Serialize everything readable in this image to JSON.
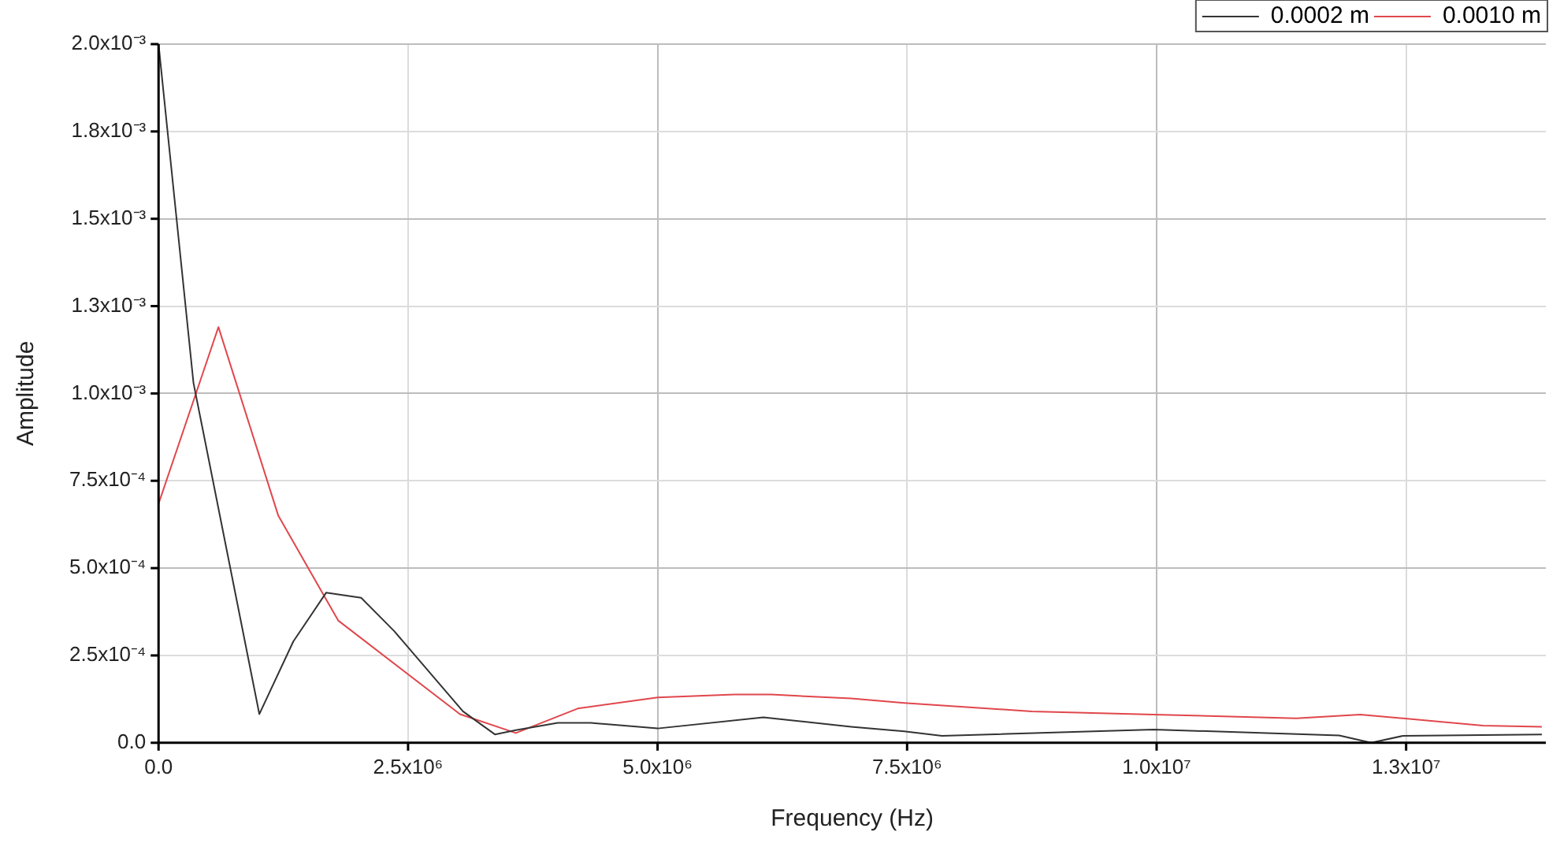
{
  "chart_data": {
    "type": "line",
    "xlabel": "Frequency (Hz)",
    "ylabel": "Amplitude",
    "xlim": [
      0,
      13900000
    ],
    "ylim": [
      0,
      0.002
    ],
    "xticks": [
      {
        "value": 0,
        "label": "0.0"
      },
      {
        "value": 2500000,
        "label": "2.5x10⁶"
      },
      {
        "value": 5000000,
        "label": "5.0x10⁶"
      },
      {
        "value": 7500000,
        "label": "7.5x10⁶"
      },
      {
        "value": 10000000,
        "label": "1.0x10⁷"
      },
      {
        "value": 12500000,
        "label": "1.3x10⁷"
      }
    ],
    "yticks": [
      {
        "value": 0,
        "label": "0.0"
      },
      {
        "value": 0.00025,
        "label": "2.5x10⁻⁴"
      },
      {
        "value": 0.0005,
        "label": "5.0x10⁻⁴"
      },
      {
        "value": 0.00075,
        "label": "7.5x10⁻⁴"
      },
      {
        "value": 0.001,
        "label": "1.0x10⁻³"
      },
      {
        "value": 0.00125,
        "label": "1.3x10⁻³"
      },
      {
        "value": 0.0015,
        "label": "1.5x10⁻³"
      },
      {
        "value": 0.00175,
        "label": "1.8x10⁻³"
      },
      {
        "value": 0.002,
        "label": "2.0x10⁻³"
      }
    ],
    "grid": true,
    "legend": "top right",
    "marker": "none",
    "line_style": "solid",
    "series": [
      {
        "name": "0.0002 m",
        "color": "#333333",
        "x": [
          0,
          350000,
          1010000,
          1350000,
          1680000,
          2030000,
          2360000,
          3050000,
          3370000,
          3580000,
          4000000,
          4330000,
          5000000,
          6060000,
          6940000,
          7470000,
          7850000,
          9970000,
          11830000,
          12150000,
          12470000,
          13860000
        ],
        "values": [
          0.002,
          0.00103,
          8.2e-05,
          0.00029,
          0.00043,
          0.000415,
          0.00032,
          9e-05,
          2.4e-05,
          3.6e-05,
          5.7e-05,
          5.7e-05,
          4.1e-05,
          7.3e-05,
          4.6e-05,
          3.3e-05,
          2e-05,
          3.8e-05,
          2.1e-05,
          0.0,
          2e-05,
          2.4e-05
        ]
      },
      {
        "name": "0.0010 m",
        "color": "#e0474c",
        "x": [
          0,
          600000,
          1200000,
          1800000,
          3020000,
          3580000,
          4200000,
          5000000,
          5770000,
          6140000,
          6940000,
          7470000,
          8750000,
          9970000,
          11400000,
          12040000,
          13270000,
          13860000
        ],
        "values": [
          0.000684,
          0.00119,
          0.00065,
          0.00035,
          8.2e-05,
          2.8e-05,
          9.8e-05,
          0.00013,
          0.000138,
          0.000138,
          0.000127,
          0.000114,
          9e-05,
          8.1e-05,
          7e-05,
          8.1e-05,
          4.9e-05,
          4.6e-05
        ]
      }
    ]
  }
}
